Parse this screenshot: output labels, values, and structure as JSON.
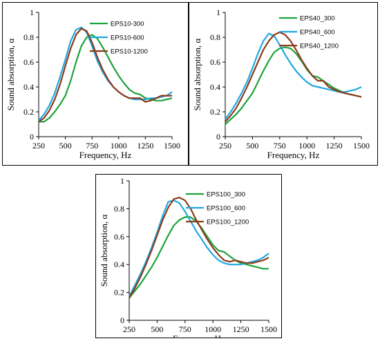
{
  "chart_data": [
    {
      "type": "line",
      "xlabel": "Frequency, Hz",
      "ylabel": "Sound absorption, α",
      "xlim": [
        250,
        1500
      ],
      "ylim": [
        0,
        1
      ],
      "xticks": [
        "250",
        "500",
        "750",
        "1000",
        "1250",
        "1500"
      ],
      "yticks": [
        "0",
        "0.2",
        "0.4",
        "0.6",
        "0.8",
        "1"
      ],
      "grid": false,
      "legend_position": "top-right",
      "series": [
        {
          "name": "EPS10-300",
          "color": "#1aa33a",
          "x": [
            250,
            300,
            350,
            400,
            450,
            500,
            550,
            600,
            650,
            700,
            750,
            800,
            850,
            900,
            950,
            1000,
            1050,
            1100,
            1150,
            1200,
            1250,
            1300,
            1350,
            1400,
            1450,
            1500
          ],
          "y": [
            0.12,
            0.12,
            0.15,
            0.2,
            0.26,
            0.33,
            0.45,
            0.6,
            0.73,
            0.8,
            0.82,
            0.79,
            0.72,
            0.64,
            0.56,
            0.49,
            0.43,
            0.38,
            0.35,
            0.34,
            0.31,
            0.3,
            0.29,
            0.29,
            0.3,
            0.31
          ]
        },
        {
          "name": "EPS10-600",
          "color": "#1ea7e1",
          "x": [
            250,
            300,
            350,
            400,
            450,
            500,
            550,
            600,
            650,
            700,
            750,
            800,
            850,
            900,
            950,
            1000,
            1050,
            1100,
            1150,
            1200,
            1250,
            1300,
            1350,
            1400,
            1450,
            1500
          ],
          "y": [
            0.13,
            0.18,
            0.25,
            0.35,
            0.48,
            0.62,
            0.77,
            0.86,
            0.88,
            0.84,
            0.73,
            0.61,
            0.52,
            0.45,
            0.4,
            0.36,
            0.33,
            0.31,
            0.3,
            0.3,
            0.3,
            0.31,
            0.31,
            0.32,
            0.33,
            0.36
          ]
        },
        {
          "name": "EPS10-1200",
          "color": "#8b3a1a",
          "x": [
            250,
            300,
            350,
            400,
            450,
            500,
            550,
            600,
            650,
            700,
            750,
            800,
            850,
            900,
            950,
            1000,
            1050,
            1100,
            1150,
            1200,
            1250,
            1300,
            1350,
            1400,
            1450,
            1500
          ],
          "y": [
            0.12,
            0.15,
            0.21,
            0.3,
            0.42,
            0.57,
            0.71,
            0.82,
            0.87,
            0.85,
            0.76,
            0.64,
            0.54,
            0.46,
            0.4,
            0.36,
            0.33,
            0.31,
            0.31,
            0.31,
            0.28,
            0.29,
            0.31,
            0.33,
            0.33,
            0.33
          ]
        }
      ]
    },
    {
      "type": "line",
      "xlabel": "Frequency, Hz",
      "ylabel": "Sound absorption, α",
      "xlim": [
        250,
        1500
      ],
      "ylim": [
        0,
        1
      ],
      "xticks": [
        "250",
        "500",
        "750",
        "1000",
        "1250",
        "1500"
      ],
      "yticks": [
        "0",
        "0.2",
        "0.4",
        "0.6",
        "0.8",
        "1"
      ],
      "grid": false,
      "legend_position": "top-right",
      "series": [
        {
          "name": "EPS40_300",
          "color": "#1aa33a",
          "x": [
            250,
            300,
            350,
            400,
            450,
            500,
            550,
            600,
            650,
            700,
            750,
            800,
            850,
            900,
            950,
            1000,
            1050,
            1100,
            1150,
            1200,
            1250,
            1300,
            1350,
            1400,
            1450,
            1500
          ],
          "y": [
            0.1,
            0.14,
            0.18,
            0.23,
            0.29,
            0.35,
            0.44,
            0.53,
            0.61,
            0.68,
            0.71,
            0.72,
            0.71,
            0.67,
            0.61,
            0.54,
            0.49,
            0.48,
            0.45,
            0.42,
            0.39,
            0.37,
            0.35,
            0.34,
            0.33,
            0.32
          ]
        },
        {
          "name": "EPS40_600",
          "color": "#1ea7e1",
          "x": [
            250,
            300,
            350,
            400,
            450,
            500,
            550,
            600,
            650,
            700,
            750,
            800,
            850,
            900,
            950,
            1000,
            1050,
            1100,
            1150,
            1200,
            1250,
            1300,
            1350,
            1400,
            1450,
            1500
          ],
          "y": [
            0.14,
            0.2,
            0.27,
            0.35,
            0.44,
            0.55,
            0.67,
            0.77,
            0.83,
            0.81,
            0.74,
            0.66,
            0.59,
            0.53,
            0.48,
            0.44,
            0.41,
            0.4,
            0.39,
            0.38,
            0.37,
            0.36,
            0.36,
            0.37,
            0.38,
            0.4
          ]
        },
        {
          "name": "EPS40_1200",
          "color": "#8b3a1a",
          "x": [
            250,
            300,
            350,
            400,
            450,
            500,
            550,
            600,
            650,
            700,
            750,
            800,
            850,
            900,
            950,
            1000,
            1050,
            1100,
            1150,
            1200,
            1250,
            1300,
            1350,
            1400,
            1450,
            1500
          ],
          "y": [
            0.12,
            0.17,
            0.23,
            0.31,
            0.4,
            0.5,
            0.6,
            0.7,
            0.77,
            0.82,
            0.84,
            0.82,
            0.77,
            0.7,
            0.62,
            0.55,
            0.49,
            0.45,
            0.45,
            0.4,
            0.38,
            0.36,
            0.35,
            0.34,
            0.33,
            0.32
          ]
        }
      ]
    },
    {
      "type": "line",
      "xlabel": "Frequency, Hz",
      "ylabel": "Sound absorption, α",
      "xlim": [
        250,
        1500
      ],
      "ylim": [
        0,
        1
      ],
      "xticks": [
        "250",
        "500",
        "750",
        "1000",
        "1250",
        "1500"
      ],
      "yticks": [
        "0",
        "0.2",
        "0.4",
        "0.6",
        "0.8",
        "1"
      ],
      "grid": false,
      "legend_position": "top-right",
      "series": [
        {
          "name": "EPS100_300",
          "color": "#1aa33a",
          "x": [
            250,
            300,
            350,
            400,
            450,
            500,
            550,
            600,
            650,
            700,
            750,
            800,
            850,
            900,
            950,
            1000,
            1050,
            1100,
            1150,
            1200,
            1250,
            1300,
            1350,
            1400,
            1450,
            1500
          ],
          "y": [
            0.16,
            0.21,
            0.26,
            0.32,
            0.38,
            0.45,
            0.53,
            0.61,
            0.68,
            0.72,
            0.74,
            0.74,
            0.71,
            0.66,
            0.6,
            0.54,
            0.5,
            0.49,
            0.46,
            0.43,
            0.41,
            0.4,
            0.39,
            0.38,
            0.37,
            0.37
          ]
        },
        {
          "name": "EPS100_600",
          "color": "#1ea7e1",
          "x": [
            250,
            300,
            350,
            400,
            450,
            500,
            550,
            600,
            650,
            700,
            750,
            800,
            850,
            900,
            950,
            1000,
            1050,
            1100,
            1150,
            1200,
            1250,
            1300,
            1350,
            1400,
            1450,
            1500
          ],
          "y": [
            0.17,
            0.25,
            0.33,
            0.42,
            0.52,
            0.63,
            0.75,
            0.85,
            0.86,
            0.84,
            0.78,
            0.71,
            0.64,
            0.58,
            0.52,
            0.47,
            0.43,
            0.41,
            0.4,
            0.4,
            0.4,
            0.41,
            0.42,
            0.43,
            0.45,
            0.48
          ]
        },
        {
          "name": "EPS100_1200",
          "color": "#8b3a1a",
          "x": [
            250,
            300,
            350,
            400,
            450,
            500,
            550,
            600,
            650,
            700,
            750,
            800,
            850,
            900,
            950,
            1000,
            1050,
            1100,
            1150,
            1200,
            1250,
            1300,
            1350,
            1400,
            1450,
            1500
          ],
          "y": [
            0.16,
            0.23,
            0.31,
            0.4,
            0.5,
            0.61,
            0.72,
            0.81,
            0.87,
            0.88,
            0.86,
            0.8,
            0.72,
            0.65,
            0.58,
            0.52,
            0.47,
            0.43,
            0.42,
            0.43,
            0.42,
            0.41,
            0.41,
            0.42,
            0.43,
            0.45
          ]
        }
      ]
    }
  ]
}
